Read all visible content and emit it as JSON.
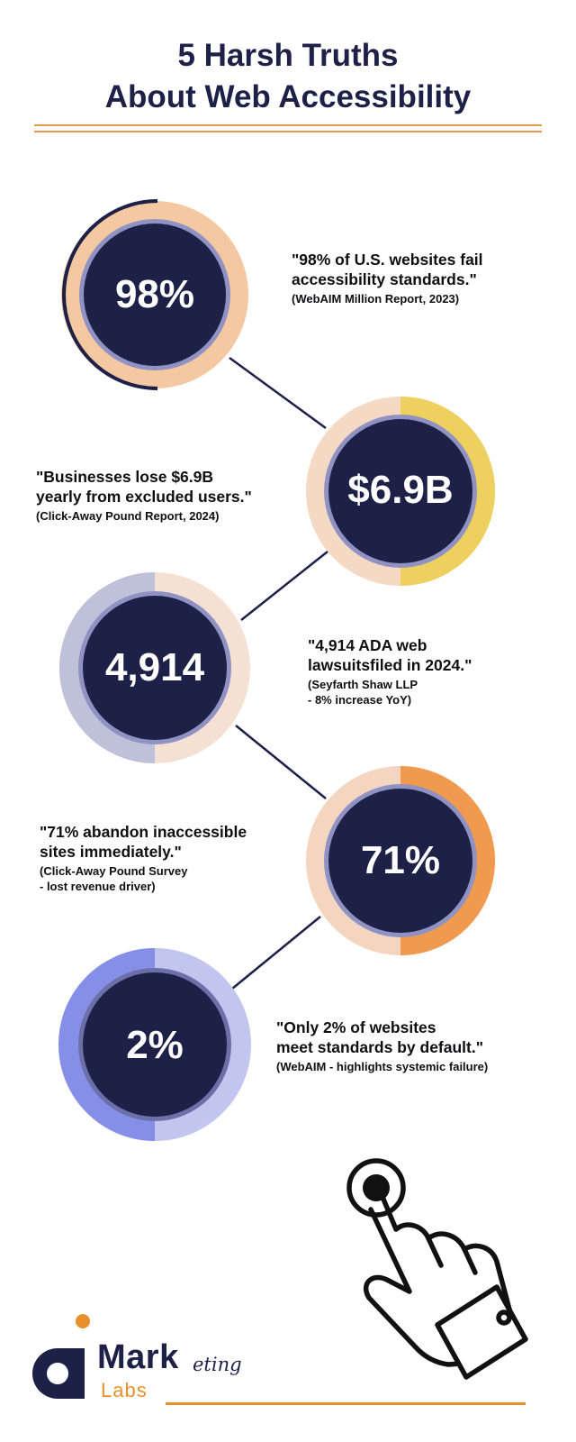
{
  "title": {
    "line1": "5 Harsh Truths",
    "line2": "About Web Accessibility"
  },
  "stats": [
    {
      "value": "98%",
      "quote": [
        "\"98% of U.S. websites fail",
        "accessibility standards.\""
      ],
      "source": [
        "(WebAIM Million Report, 2023)"
      ]
    },
    {
      "value": "$6.9B",
      "quote": [
        "\"Businesses lose $6.9B",
        "yearly from excluded users.\""
      ],
      "source": [
        "(Click-Away Pound Report, 2024)"
      ]
    },
    {
      "value": "4,914",
      "quote": [
        "\"4,914 ADA web",
        "lawsuitsfiled in 2024.\""
      ],
      "source": [
        "(Seyfarth Shaw LLP",
        "- 8% increase YoY)"
      ]
    },
    {
      "value": "71%",
      "quote": [
        "\"71% abandon inaccessible",
        "sites immediately.\""
      ],
      "source": [
        "(Click-Away Pound Survey",
        "- lost revenue driver)"
      ]
    },
    {
      "value": "2%",
      "quote": [
        "\"Only 2% of websites",
        "meet standards by default.\""
      ],
      "source": [
        "(WebAIM - highlights systemic failure)"
      ]
    }
  ],
  "logo": {
    "mark": "Mark",
    "eting": "eting",
    "labs": "Labs"
  },
  "colors": {
    "navy": "#1e2147",
    "orange": "#e8912c",
    "peach": "#f4c8a0",
    "yellow": "#edd05e",
    "lavender": "#bfc0d9",
    "blue": "#868fe8"
  },
  "icons": [
    "pointing-hand-icon",
    "marketing-labs-logo-icon"
  ]
}
